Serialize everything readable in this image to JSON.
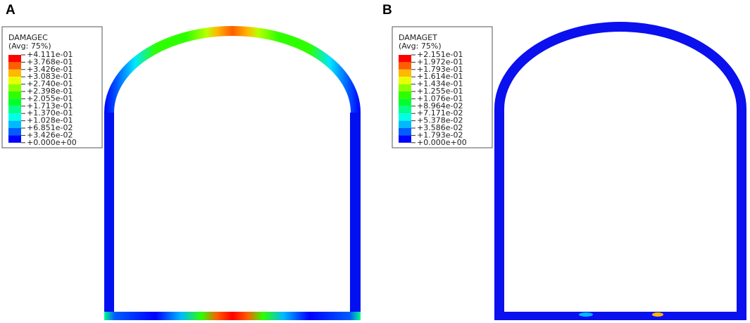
{
  "panels": [
    {
      "label": "A",
      "legend": {
        "title": "DAMAGEC",
        "subtitle": "(Avg: 75%)",
        "labels": [
          "+4.111e-01",
          "+3.768e-01",
          "+3.426e-01",
          "+3.083e-01",
          "+2.740e-01",
          "+2.398e-01",
          "+2.055e-01",
          "+1.713e-01",
          "+1.370e-01",
          "+1.028e-01",
          "+6.851e-02",
          "+3.426e-02",
          "+0.000e+00"
        ]
      }
    },
    {
      "label": "B",
      "legend": {
        "title": "DAMAGET",
        "subtitle": "(Avg: 75%)",
        "labels": [
          "+2.151e-01",
          "+1.972e-01",
          "+1.793e-01",
          "+1.614e-01",
          "+1.434e-01",
          "+1.255e-01",
          "+1.076e-01",
          "+8.964e-02",
          "+7.171e-02",
          "+5.378e-02",
          "+3.586e-02",
          "+1.793e-02",
          "+0.000e+00"
        ]
      }
    }
  ]
}
